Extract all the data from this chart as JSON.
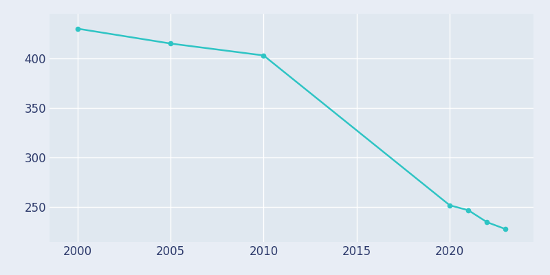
{
  "years": [
    2000,
    2005,
    2010,
    2020,
    2021,
    2022,
    2023
  ],
  "population": [
    430,
    415,
    403,
    252,
    247,
    235,
    228
  ],
  "line_color": "#2EC4C4",
  "marker_color": "#2EC4C4",
  "bg_color": "#E8EDF5",
  "plot_bg_color": "#E0E8F0",
  "xlabel": "",
  "ylabel": "",
  "xlim": [
    1998.5,
    2024.5
  ],
  "ylim": [
    215,
    445
  ],
  "xticks": [
    2000,
    2005,
    2010,
    2015,
    2020
  ],
  "yticks": [
    250,
    300,
    350,
    400
  ],
  "grid_color": "#FFFFFF",
  "tick_label_color": "#2D3A6B",
  "tick_fontsize": 12,
  "line_width": 1.8,
  "marker_size": 4.5
}
